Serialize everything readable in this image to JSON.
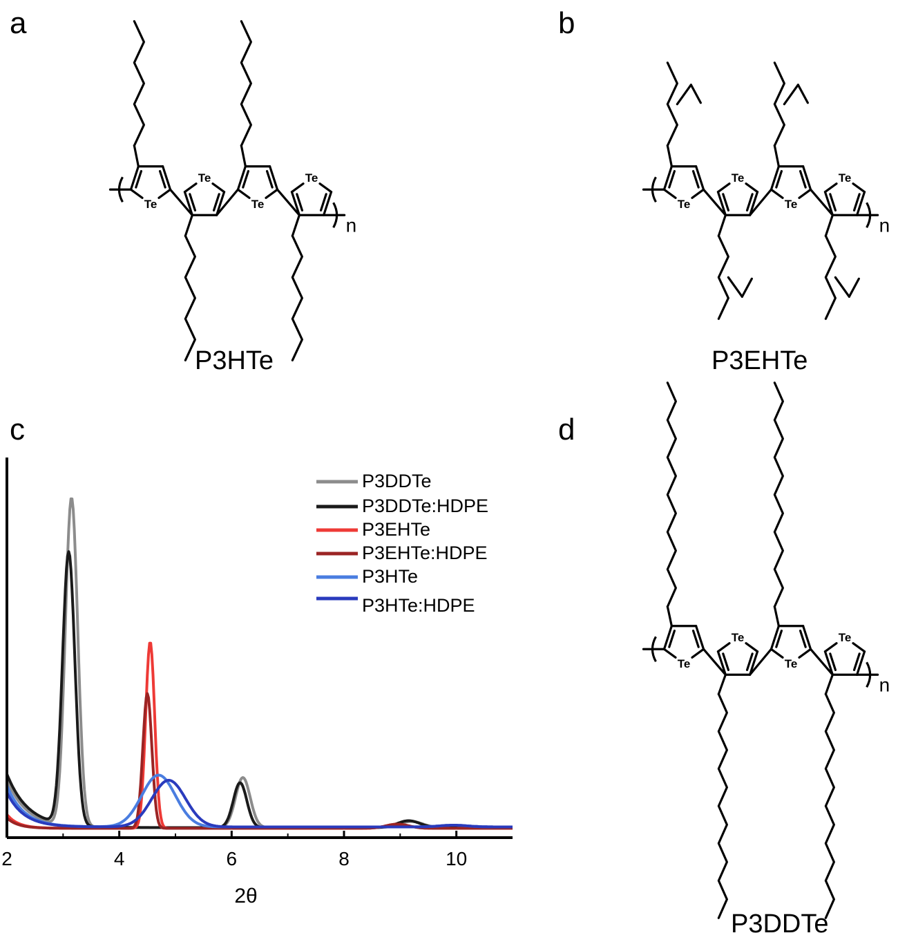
{
  "panels": {
    "a": {
      "letter": "a",
      "name": "P3HTe"
    },
    "b": {
      "letter": "b",
      "name": "P3EHTe"
    },
    "c": {
      "letter": "c"
    },
    "d": {
      "letter": "d",
      "name": "P3DDTe"
    }
  },
  "structure": {
    "heteroatom": "Te",
    "repeat_subscript": "n"
  },
  "colors": {
    "P3DDTe": "#8c8c8c",
    "P3DDTe:HDPE": "#1a1a1a",
    "P3EHTe": "#ee3a36",
    "P3EHTe:HDPE": "#9b2424",
    "P3HTe": "#4a7de0",
    "P3HTe:HDPE": "#2a3bbd"
  },
  "chart_data": {
    "type": "line",
    "xlabel": "2θ",
    "ylabel": "",
    "xlim": [
      2,
      11
    ],
    "ylim": [
      0,
      1.0
    ],
    "xticks": [
      2,
      4,
      6,
      8,
      10
    ],
    "y_ticks_shown": false,
    "legend_position": "top-right",
    "series": [
      {
        "name": "P3DDTe",
        "peaks": [
          [
            3.15,
            0.95,
            0.11
          ],
          [
            6.2,
            0.145,
            0.13
          ],
          [
            9.2,
            0.018,
            0.2
          ]
        ],
        "bg_start": 0.14,
        "bg_decay": 0.35,
        "baseline": 0.005
      },
      {
        "name": "P3DDTe:HDPE",
        "peaks": [
          [
            3.1,
            0.79,
            0.11
          ],
          [
            6.15,
            0.13,
            0.12
          ],
          [
            9.15,
            0.02,
            0.2
          ]
        ],
        "bg_start": 0.155,
        "bg_decay": 0.38,
        "baseline": 0.005
      },
      {
        "name": "P3EHTe",
        "peaks": [
          [
            4.55,
            0.54,
            0.08
          ],
          [
            8.95,
            0.012,
            0.2
          ]
        ],
        "bg_start": 0.04,
        "bg_decay": 0.2,
        "baseline": 0.003
      },
      {
        "name": "P3EHTe:HDPE",
        "peaks": [
          [
            4.5,
            0.39,
            0.08
          ],
          [
            8.95,
            0.012,
            0.2
          ]
        ],
        "bg_start": 0.03,
        "bg_decay": 0.2,
        "baseline": 0.003
      },
      {
        "name": "P3HTe",
        "peaks": [
          [
            4.7,
            0.15,
            0.3
          ],
          [
            9.95,
            0.005,
            0.25
          ]
        ],
        "bg_start": 0.12,
        "bg_decay": 0.3,
        "baseline": 0.007
      },
      {
        "name": "P3HTe:HDPE",
        "peaks": [
          [
            4.88,
            0.135,
            0.3
          ],
          [
            9.95,
            0.005,
            0.25
          ]
        ],
        "bg_start": 0.1,
        "bg_decay": 0.3,
        "baseline": 0.007
      }
    ],
    "legend": [
      "P3DDTe",
      "P3DDTe:HDPE",
      "P3EHTe",
      "P3EHTe:HDPE",
      "P3HTe",
      "P3HTe:HDPE"
    ]
  }
}
